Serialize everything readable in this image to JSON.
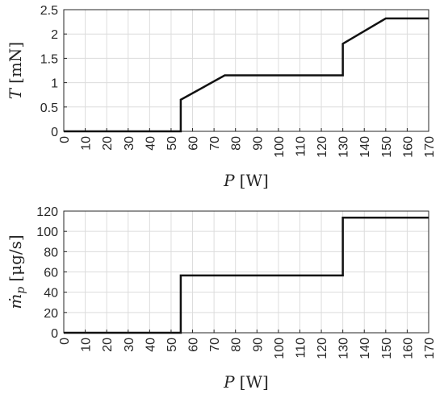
{
  "chart_data": [
    {
      "type": "line",
      "title": "",
      "xlabel": "P [W]",
      "xlabel_parts": {
        "var": "P",
        "unit": "[W]"
      },
      "ylabel": "T [mN]",
      "ylabel_parts": {
        "var": "T",
        "unit": "[mN]"
      },
      "xlim": [
        0,
        170
      ],
      "ylim": [
        0,
        2.5
      ],
      "xticks": [
        0,
        10,
        20,
        30,
        40,
        50,
        60,
        70,
        80,
        90,
        100,
        110,
        120,
        130,
        140,
        150,
        160,
        170
      ],
      "yticks": [
        0,
        0.5,
        1,
        1.5,
        2,
        2.5
      ],
      "ytick_labels": [
        "0",
        "0.5",
        "1",
        "1.5",
        "2",
        "2.5"
      ],
      "grid": true,
      "series": [
        {
          "color": "#111111",
          "x": [
            0,
            54.5,
            54.5,
            75,
            130,
            130,
            150,
            170
          ],
          "y": [
            0,
            0,
            0.65,
            1.15,
            1.15,
            1.8,
            2.32,
            2.32
          ]
        }
      ]
    },
    {
      "type": "line",
      "title": "",
      "xlabel": "P [W]",
      "xlabel_parts": {
        "var": "P",
        "unit": "[W]"
      },
      "ylabel": "ṁp [μg/s]",
      "ylabel_parts": {
        "var": "ṁ",
        "sub": "p",
        "unit": "[μg/s]"
      },
      "xlim": [
        0,
        170
      ],
      "ylim": [
        0,
        120
      ],
      "xticks": [
        0,
        10,
        20,
        30,
        40,
        50,
        60,
        70,
        80,
        90,
        100,
        110,
        120,
        130,
        140,
        150,
        160,
        170
      ],
      "yticks": [
        0,
        20,
        40,
        60,
        80,
        100,
        120
      ],
      "ytick_labels": [
        "0",
        "20",
        "40",
        "60",
        "80",
        "100",
        "120"
      ],
      "grid": true,
      "series": [
        {
          "color": "#111111",
          "x": [
            0,
            54.5,
            54.5,
            130,
            130,
            170
          ],
          "y": [
            0,
            0,
            56.5,
            56.5,
            113.5,
            113.5
          ]
        }
      ]
    }
  ]
}
